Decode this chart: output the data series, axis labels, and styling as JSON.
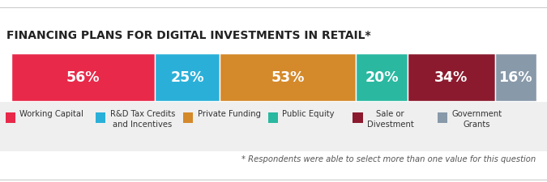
{
  "title": "FINANCING PLANS FOR DIGITAL INVESTMENTS IN RETAIL*",
  "segments": [
    {
      "label": "Working Capital",
      "value": 56,
      "color": "#e8294a",
      "pct_text": "56%"
    },
    {
      "label": "R&D Tax Credits\nand Incentives",
      "value": 25,
      "color": "#2ab0d8",
      "pct_text": "25%"
    },
    {
      "label": "Private Funding",
      "value": 53,
      "color": "#d4892a",
      "pct_text": "53%"
    },
    {
      "label": "Public Equity",
      "value": 20,
      "color": "#2ab8a0",
      "pct_text": "20%"
    },
    {
      "label": "Sale or\nDivestment",
      "value": 34,
      "color": "#8b1a2e",
      "pct_text": "34%"
    },
    {
      "label": "Government\nGrants",
      "value": 16,
      "color": "#8899aa",
      "pct_text": "16%"
    }
  ],
  "footnote": "* Respondents were able to select more than one value for this question",
  "bg_color": "#ffffff",
  "legend_bg": "#efefef",
  "title_fontsize": 10.0,
  "pct_fontsize": 12.5,
  "legend_fontsize": 7.2,
  "footnote_fontsize": 7.2
}
